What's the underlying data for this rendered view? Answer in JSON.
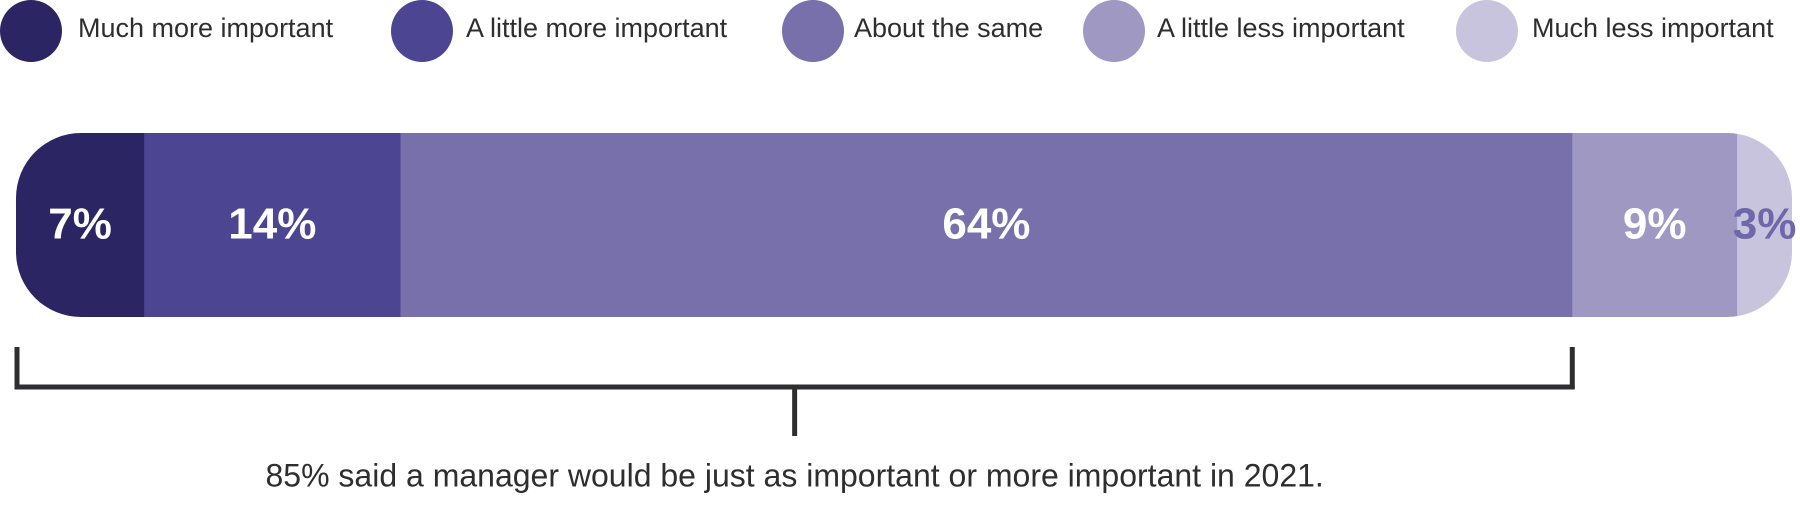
{
  "chart_data": {
    "type": "stacked-bar-100",
    "series": [
      {
        "name": "Much more important",
        "color": "#2b2563",
        "label_color": "#ffffff",
        "values": [
          7
        ],
        "value_labels": [
          "7%"
        ]
      },
      {
        "name": "A little more important",
        "color": "#4b4592",
        "label_color": "#ffffff",
        "values": [
          14
        ],
        "value_labels": [
          "14%"
        ]
      },
      {
        "name": "About the same",
        "color": "#7770aa",
        "label_color": "#ffffff",
        "values": [
          64
        ],
        "value_labels": [
          "64%"
        ]
      },
      {
        "name": "A little less important",
        "color": "#9e98c3",
        "label_color": "#ffffff",
        "values": [
          9
        ],
        "value_labels": [
          "9%"
        ]
      },
      {
        "name": "Much less important",
        "color": "#c8c4de",
        "label_color": "#6f68a8",
        "values": [
          3
        ],
        "value_labels": [
          "3%"
        ]
      }
    ],
    "annotation": "85% said a manager would be just as important or more important in 2021."
  }
}
